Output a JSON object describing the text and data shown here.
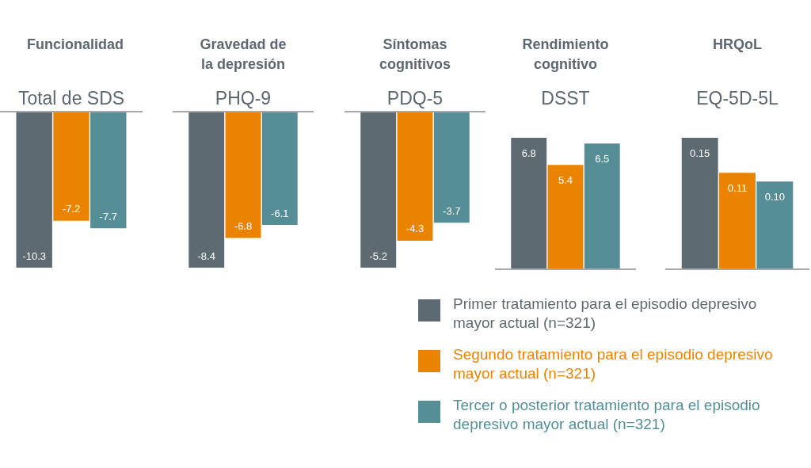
{
  "chart_data": [
    {
      "type": "bar",
      "title": "Funcionalidad",
      "subtitle": "Total de SDS",
      "categories": [
        null
      ],
      "data_labels": true,
      "series": [
        {
          "color": "#5e6a71",
          "values": [
            -10.3
          ]
        },
        {
          "color": "#e98300",
          "values": [
            -7.2
          ]
        },
        {
          "color": "#558e96",
          "values": [
            -7.7
          ]
        }
      ]
    },
    {
      "type": "bar",
      "title": "Gravedad de la depresión",
      "subtitle": "PHQ-9",
      "categories": [
        null
      ],
      "data_labels": true,
      "series": [
        {
          "color": "#5e6a71",
          "values": [
            -8.4
          ]
        },
        {
          "color": "#e98300",
          "values": [
            -6.8
          ]
        },
        {
          "color": "#558e96",
          "values": [
            -6.1
          ]
        }
      ]
    },
    {
      "type": "bar",
      "title": "Síntomas cognitivos",
      "subtitle": "PDQ-5",
      "categories": [
        null
      ],
      "data_labels": true,
      "series": [
        {
          "color": "#5e6a71",
          "values": [
            -5.2
          ]
        },
        {
          "color": "#e98300",
          "values": [
            -4.3
          ]
        },
        {
          "color": "#558e96",
          "values": [
            -3.7
          ]
        }
      ]
    },
    {
      "type": "bar",
      "title": "Rendimiento cognitivo",
      "subtitle": "DSST",
      "categories": [
        null
      ],
      "data_labels": true,
      "series": [
        {
          "color": "#5e6a71",
          "values": [
            6.8
          ]
        },
        {
          "color": "#e98300",
          "values": [
            5.4
          ]
        },
        {
          "color": "#558e96",
          "values": [
            6.5
          ]
        }
      ]
    },
    {
      "type": "bar",
      "title": "HRQoL",
      "subtitle": "EQ-5D-5L",
      "categories": [
        null
      ],
      "legend": "bottom left",
      "series": [
        {
          "name": "Primer tratamiento para el episodio depresivo mayor actual (n=321)",
          "color": "#5e6a71",
          "values": [
            0.15
          ],
          "value_labels": [
            "0.15"
          ]
        },
        {
          "name": "Segundo tratamiento para el episodio depresivo mayor actual (n=321)",
          "color": "#e98300",
          "values": [
            0.11
          ],
          "value_labels": [
            "0.11"
          ]
        },
        {
          "name": "Tercer o posterior tratamiento para el episodio depresivo mayor actual (n=321)",
          "color": "#558e96",
          "values": [
            0.1
          ],
          "value_labels": [
            "0.10"
          ]
        }
      ]
    }
  ]
}
